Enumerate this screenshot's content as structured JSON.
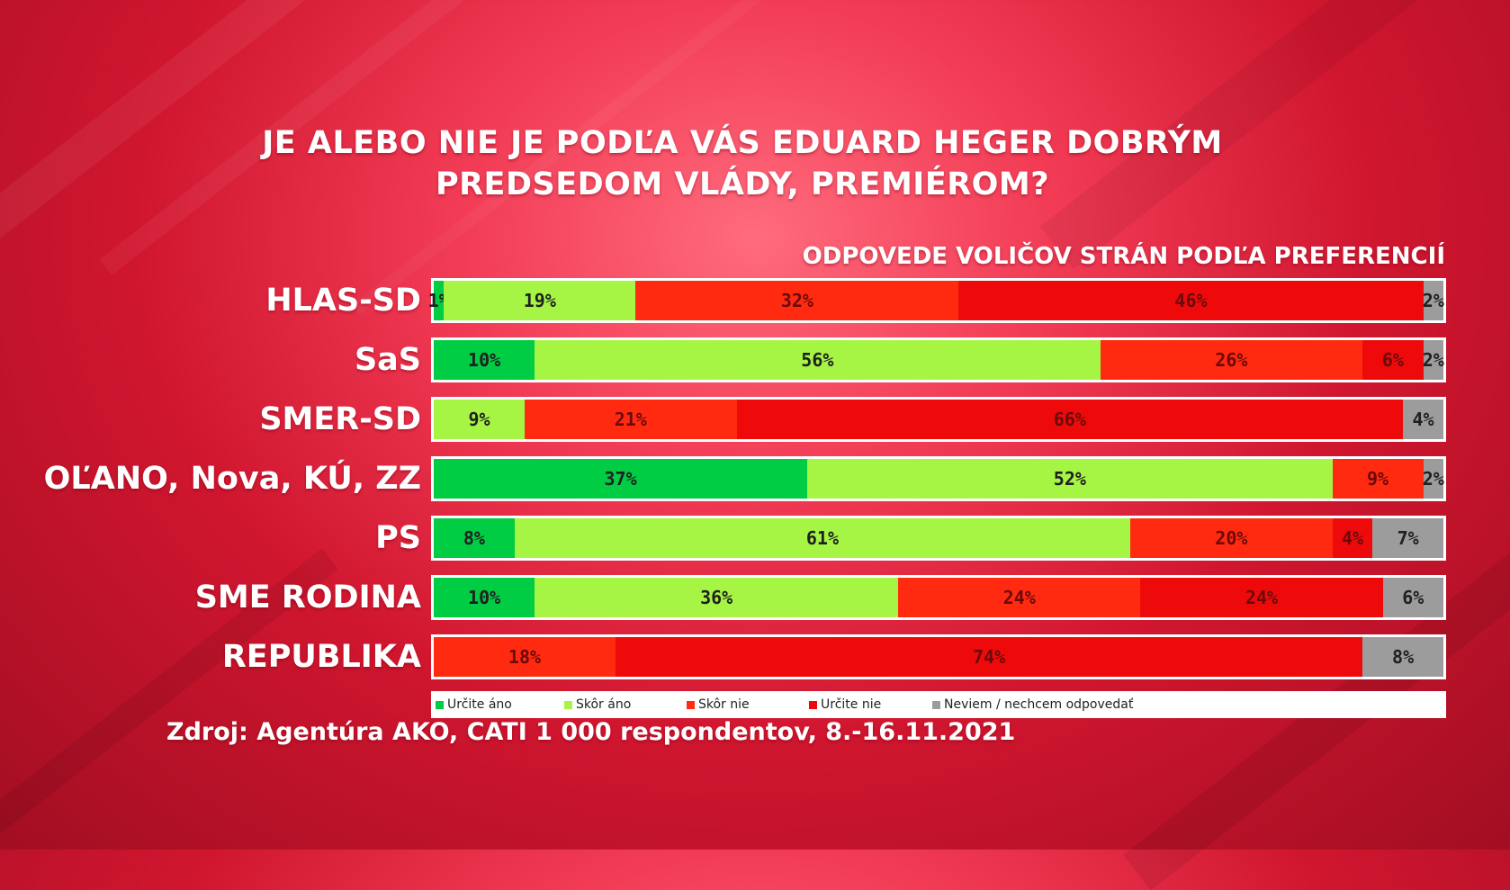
{
  "title_line1": "JE ALEBO NIE JE PODĽA VÁS EDUARD HEGER DOBRÝM",
  "title_line2": "PREDSEDOM VLÁDY, PREMIÉROM?",
  "subtitle": "ODPOVEDE VOLIČOV STRÁN PODĽA PREFERENCIÍ",
  "source": "Zdroj: Agentúra AKO, CATI 1 000 respondentov, 8.-16.11.2021",
  "colors": {
    "urcite_ano": "#00cc44",
    "skor_ano": "#a6f545",
    "skor_nie": "#ff2a10",
    "urcite_nie": "#ee0a0a",
    "neviem": "#9c9c9c"
  },
  "chart_data": {
    "type": "bar",
    "orientation": "horizontal",
    "stacked": true,
    "title": "JE ALEBO NIE JE PODĽA VÁS EDUARD HEGER DOBRÝM PREDSEDOM VLÁDY, PREMIÉROM?",
    "subtitle": "ODPOVEDE VOLIČOV STRÁN PODĽA PREFERENCIÍ",
    "categories": [
      "HLAS-SD",
      "SaS",
      "SMER-SD",
      "OĽANO, Nova, KÚ, ZZ",
      "PS",
      "SME RODINA",
      "REPUBLIKA"
    ],
    "series": [
      {
        "key": "urcite_ano",
        "name": "Určite áno",
        "values": [
          1,
          10,
          0,
          37,
          8,
          10,
          0
        ]
      },
      {
        "key": "skor_ano",
        "name": "Skôr áno",
        "values": [
          19,
          56,
          9,
          52,
          61,
          36,
          0
        ]
      },
      {
        "key": "skor_nie",
        "name": "Skôr nie",
        "values": [
          32,
          26,
          21,
          9,
          20,
          24,
          18
        ]
      },
      {
        "key": "urcite_nie",
        "name": "Určite nie",
        "values": [
          46,
          6,
          66,
          0,
          4,
          24,
          74
        ]
      },
      {
        "key": "neviem",
        "name": "Neviem / nechcem odpovedať",
        "values": [
          2,
          2,
          4,
          2,
          7,
          6,
          8
        ]
      }
    ],
    "value_labels": [
      [
        "1%",
        "19%",
        "32%",
        "46%",
        "2%"
      ],
      [
        "10%",
        "56%",
        "26%",
        "6%",
        "2%"
      ],
      [
        "",
        "9%",
        "21%",
        "66%",
        "4%"
      ],
      [
        "37%",
        "52%",
        "9%",
        "",
        "2%"
      ],
      [
        "8%",
        "61%",
        "20%",
        "4%",
        "7%"
      ],
      [
        "10%",
        "36%",
        "24%",
        "24%",
        "6%"
      ],
      [
        "",
        "",
        "18%",
        "74%",
        "8%"
      ]
    ],
    "unit": "%",
    "legend_position": "bottom"
  }
}
